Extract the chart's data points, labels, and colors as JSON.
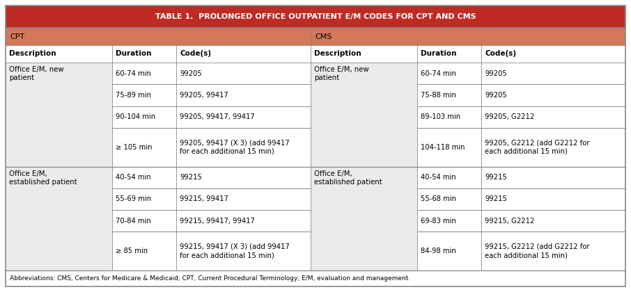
{
  "title": "TABLE 1.  PROLONGED OFFICE OUTPATIENT E/M CODES FOR CPT AND CMS",
  "title_bg": "#be2b25",
  "title_fg": "#ffffff",
  "section_bg": "#d4785a",
  "section_fg": "#000000",
  "row_alt_bg": "#eaeaea",
  "row_bg": "#ffffff",
  "border_color": "#888888",
  "abbrev": "Abbreviations: CMS, Centers for Medicare & Medicaid; CPT, Current Procedural Terminology; E/M, evaluation and management.",
  "col_headers": [
    "Description",
    "Duration",
    "Code(s)",
    "Description",
    "Duration",
    "Code(s)"
  ],
  "rows": [
    {
      "desc_left": "Office E/M, new\npatient",
      "desc_right": "Office E/M, new\npatient",
      "sub_rows": [
        {
          "dur_l": "60-74 min",
          "cod_l": "99205",
          "dur_r": "60-74 min",
          "cod_r": "99205"
        },
        {
          "dur_l": "75-89 min",
          "cod_l": "99205, 99417",
          "dur_r": "75-88 min",
          "cod_r": "99205"
        },
        {
          "dur_l": "90-104 min",
          "cod_l": "99205, 99417, 99417",
          "dur_r": "89-103 min",
          "cod_r": "99205, G2212"
        },
        {
          "dur_l": "≥ 105 min",
          "cod_l": "99205, 99417 (X 3) (add 99417\nfor each additional 15 min)",
          "dur_r": "104-118 min",
          "cod_r": "99205, G2212 (add G2212 for\neach additional 15 min)"
        }
      ]
    },
    {
      "desc_left": "Office E/M,\nestablished patient",
      "desc_right": "Office E/M,\nestablished patient",
      "sub_rows": [
        {
          "dur_l": "40-54 min",
          "cod_l": "99215",
          "dur_r": "40-54 min",
          "cod_r": "99215"
        },
        {
          "dur_l": "55-69 min",
          "cod_l": "99215, 99417",
          "dur_r": "55-68 min",
          "cod_r": "99215"
        },
        {
          "dur_l": "70-84 min",
          "cod_l": "99215, 99417, 99417",
          "dur_r": "69-83 min",
          "cod_r": "99215, G2212"
        },
        {
          "dur_l": "≥ 85 min",
          "cod_l": "99215, 99417 (X 3) (add 99417\nfor each additional 15 min)",
          "dur_r": "84-98 min",
          "cod_r": "99215, G2212 (add G2212 for\neach additional 15 min)"
        }
      ]
    }
  ],
  "fig_w": 9.06,
  "fig_h": 4.2,
  "dpi": 100
}
